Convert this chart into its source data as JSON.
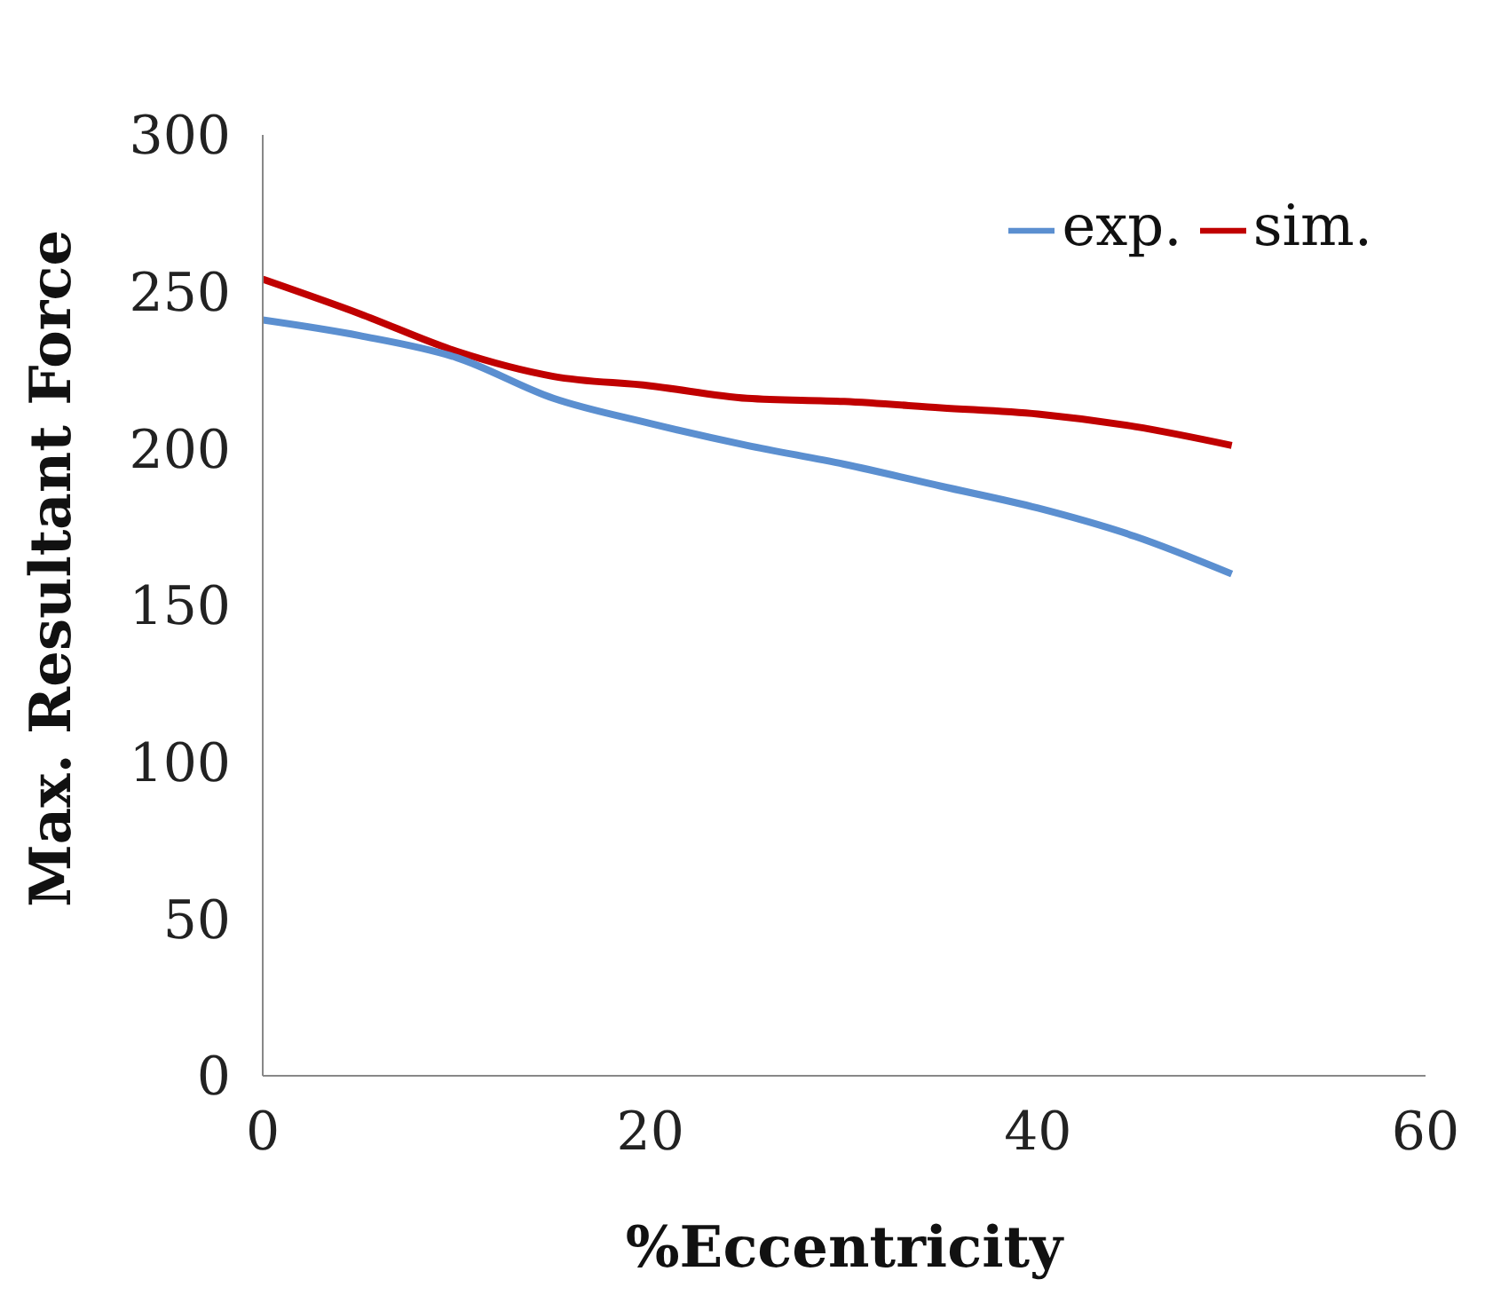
{
  "chart_data": {
    "type": "line",
    "xlabel": "%Eccentricity",
    "ylabel": "Max. Resultant Force",
    "x": [
      0,
      5,
      10,
      15,
      20,
      25,
      30,
      35,
      40,
      45,
      50
    ],
    "xlim": [
      0,
      60
    ],
    "xticks": [
      0,
      20,
      40,
      60
    ],
    "ylim": [
      0,
      300
    ],
    "yticks": [
      0,
      50,
      100,
      150,
      200,
      250,
      300
    ],
    "grid": false,
    "legend": "top right",
    "marker": "none",
    "line_style": "solid",
    "series": [
      {
        "name": "sim.",
        "color": "#c00000",
        "values": [
          254,
          243,
          231,
          223,
          220,
          216,
          215,
          213,
          211,
          207,
          201
        ]
      },
      {
        "name": "exp.",
        "color": "#5b8fd0",
        "values": [
          241,
          236,
          229,
          216,
          208,
          201,
          195,
          188,
          181,
          172,
          160
        ]
      }
    ]
  }
}
